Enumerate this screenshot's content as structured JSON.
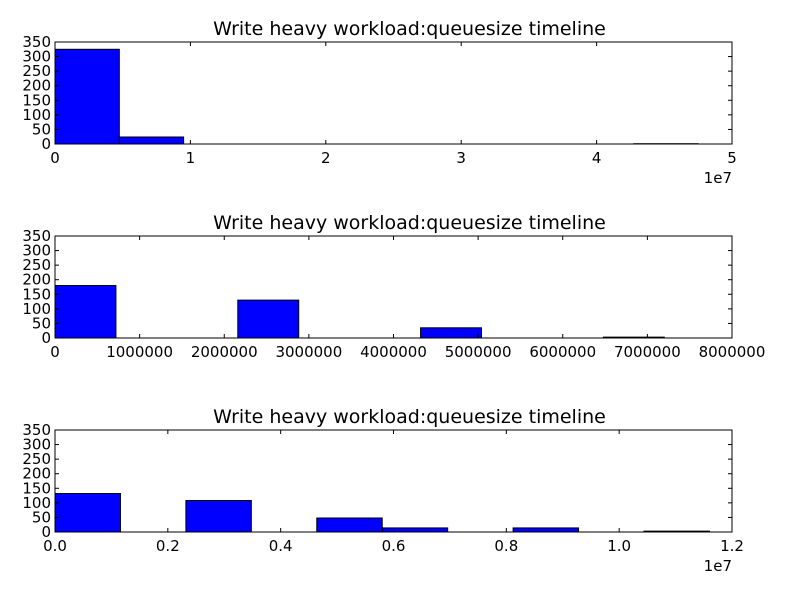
{
  "chart_data": [
    {
      "type": "bar",
      "title": "Write heavy workload:queuesize timeline",
      "xlabel": "",
      "ylabel": "",
      "xlim": [
        0,
        50000000
      ],
      "ylim": [
        0,
        350
      ],
      "xticks": [
        0,
        10000000,
        20000000,
        30000000,
        40000000,
        50000000
      ],
      "xtick_labels": [
        "0",
        "1",
        "2",
        "3",
        "4",
        "5"
      ],
      "yticks": [
        0,
        50,
        100,
        150,
        200,
        250,
        300,
        350
      ],
      "ytick_labels": [
        "0",
        "50",
        "100",
        "150",
        "200",
        "250",
        "300",
        "350"
      ],
      "offset_label": "1e7",
      "bins": [
        {
          "x0": 0,
          "x1": 4750000,
          "value": 325
        },
        {
          "x0": 4750000,
          "x1": 9500000,
          "value": 24
        },
        {
          "x0": 9500000,
          "x1": 14250000,
          "value": 0
        },
        {
          "x0": 14250000,
          "x1": 19000000,
          "value": 0
        },
        {
          "x0": 19000000,
          "x1": 23750000,
          "value": 0
        },
        {
          "x0": 23750000,
          "x1": 28500000,
          "value": 0
        },
        {
          "x0": 28500000,
          "x1": 33250000,
          "value": 0
        },
        {
          "x0": 33250000,
          "x1": 38000000,
          "value": 0
        },
        {
          "x0": 38000000,
          "x1": 42750000,
          "value": 0
        },
        {
          "x0": 42750000,
          "x1": 47500000,
          "value": 1
        }
      ],
      "bar_color": "#0000ff",
      "grid": false
    },
    {
      "type": "bar",
      "title": "Write heavy workload:queuesize timeline",
      "xlabel": "",
      "ylabel": "",
      "xlim": [
        0,
        8000000
      ],
      "ylim": [
        0,
        350
      ],
      "xticks": [
        0,
        1000000,
        2000000,
        3000000,
        4000000,
        5000000,
        6000000,
        7000000,
        8000000
      ],
      "xtick_labels": [
        "0",
        "1000000",
        "2000000",
        "3000000",
        "4000000",
        "5000000",
        "6000000",
        "7000000",
        "8000000"
      ],
      "yticks": [
        0,
        50,
        100,
        150,
        200,
        250,
        300,
        350
      ],
      "ytick_labels": [
        "0",
        "50",
        "100",
        "150",
        "200",
        "250",
        "300",
        "350"
      ],
      "offset_label": "",
      "bins": [
        {
          "x0": 0,
          "x1": 720000,
          "value": 180
        },
        {
          "x0": 720000,
          "x1": 1440000,
          "value": 0
        },
        {
          "x0": 1440000,
          "x1": 2160000,
          "value": 0
        },
        {
          "x0": 2160000,
          "x1": 2880000,
          "value": 130
        },
        {
          "x0": 2880000,
          "x1": 3600000,
          "value": 0
        },
        {
          "x0": 3600000,
          "x1": 4320000,
          "value": 0
        },
        {
          "x0": 4320000,
          "x1": 5040000,
          "value": 35
        },
        {
          "x0": 5040000,
          "x1": 5760000,
          "value": 0
        },
        {
          "x0": 5760000,
          "x1": 6480000,
          "value": 0
        },
        {
          "x0": 6480000,
          "x1": 7200000,
          "value": 3
        }
      ],
      "bar_color": "#0000ff",
      "grid": false
    },
    {
      "type": "bar",
      "title": "Write heavy workload:queuesize timeline",
      "xlabel": "",
      "ylabel": "",
      "xlim": [
        0,
        12000000
      ],
      "ylim": [
        0,
        350
      ],
      "xticks": [
        0,
        2000000,
        4000000,
        6000000,
        8000000,
        10000000,
        12000000
      ],
      "xtick_labels": [
        "0.0",
        "0.2",
        "0.4",
        "0.6",
        "0.8",
        "1.0",
        "1.2"
      ],
      "yticks": [
        0,
        50,
        100,
        150,
        200,
        250,
        300,
        350
      ],
      "ytick_labels": [
        "0",
        "50",
        "100",
        "150",
        "200",
        "250",
        "300",
        "350"
      ],
      "offset_label": "1e7",
      "bins": [
        {
          "x0": 0,
          "x1": 1160000,
          "value": 132
        },
        {
          "x0": 1160000,
          "x1": 2320000,
          "value": 0
        },
        {
          "x0": 2320000,
          "x1": 3480000,
          "value": 108
        },
        {
          "x0": 3480000,
          "x1": 4640000,
          "value": 0
        },
        {
          "x0": 4640000,
          "x1": 5800000,
          "value": 48
        },
        {
          "x0": 5800000,
          "x1": 6960000,
          "value": 14
        },
        {
          "x0": 6960000,
          "x1": 8120000,
          "value": 0
        },
        {
          "x0": 8120000,
          "x1": 9280000,
          "value": 14
        },
        {
          "x0": 9280000,
          "x1": 10440000,
          "value": 0
        },
        {
          "x0": 10440000,
          "x1": 11600000,
          "value": 3
        }
      ],
      "bar_color": "#0000ff",
      "grid": false
    }
  ]
}
